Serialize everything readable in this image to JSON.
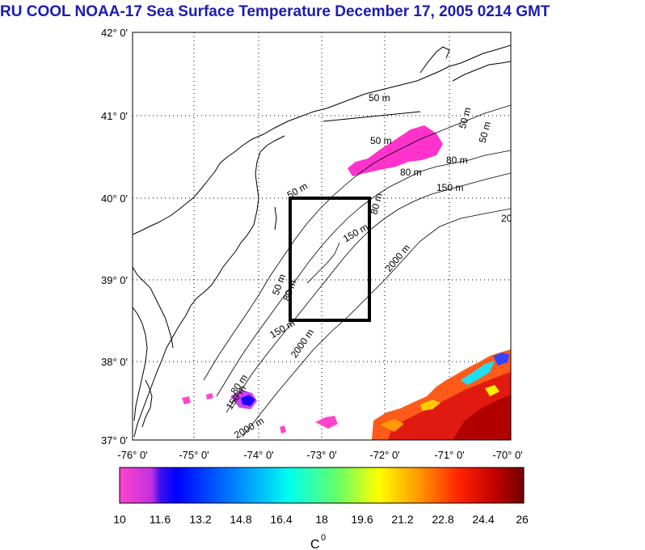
{
  "title": "RU COOL  NOAA-17 Sea Surface Temperature December 17, 2005 0214 GMT",
  "map": {
    "lat_labels": [
      "42° 0'",
      "41° 0'",
      "40° 0'",
      "39° 0'",
      "38° 0'",
      "37° 0'"
    ],
    "lon_labels": [
      "-76° 0'",
      "-75° 0'",
      "-74° 0'",
      "-73° 0'",
      "-72° 0'",
      "-71° 0'",
      "-70° 0'"
    ],
    "isobath_labels": [
      "50 m",
      "50 m",
      "80 m",
      "80 m",
      "150 m",
      "50 m",
      "50 m",
      "80 m",
      "150 m",
      "2000 m",
      "20",
      "50 m",
      "80 m",
      "150 m",
      "2000 m",
      "80 m",
      "150 m",
      "2000 m",
      "50 m"
    ],
    "study_box": {
      "lon_min": -73.5,
      "lon_max": -72.3,
      "lat_min": 38.5,
      "lat_max": 40.0
    }
  },
  "colorbar": {
    "tick_labels": [
      "10",
      "11.6",
      "13.2",
      "14.8",
      "16.4",
      "18",
      "19.6",
      "21.2",
      "22.8",
      "24.4",
      "26"
    ],
    "unit_label": "C",
    "unit_superscript": "0",
    "range": [
      10,
      26
    ],
    "colors": [
      "#ff44cc",
      "#a020f0",
      "#0000ff",
      "#00a8ff",
      "#00ffee",
      "#44ff88",
      "#ffff00",
      "#ff8800",
      "#ff2200",
      "#c00000",
      "#800000"
    ]
  }
}
